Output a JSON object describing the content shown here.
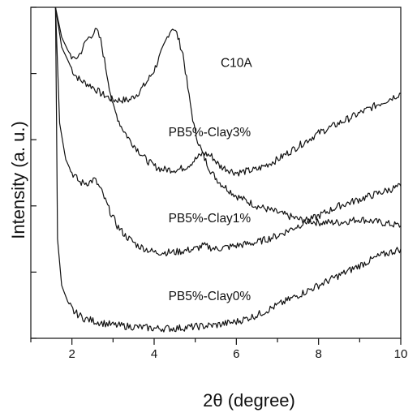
{
  "chart_data": {
    "type": "line",
    "title": "",
    "xlabel": "2θ (degree)",
    "ylabel": "Intensity (a. u.)",
    "xlim": [
      1,
      10
    ],
    "ylim": [
      0,
      100
    ],
    "x_ticks": [
      2,
      4,
      6,
      8,
      10
    ],
    "x_tick_labels": [
      "2",
      "4",
      "6",
      "8",
      "10"
    ],
    "y_tick_labels_shown": false,
    "grid": false,
    "legend": "none (curves labeled inline)",
    "series": [
      {
        "name": "C10A",
        "label": "C10A",
        "x": [
          1.6,
          1.75,
          1.9,
          2.05,
          2.2,
          2.35,
          2.5,
          2.6,
          2.7,
          2.85,
          3.0,
          3.2,
          3.4,
          3.6,
          3.8,
          4.0,
          4.2,
          4.35,
          4.45,
          4.55,
          4.7,
          4.85,
          5.0,
          5.2,
          5.4,
          5.6,
          5.8,
          6.0,
          6.5,
          7.0,
          7.5,
          8.0,
          8.5,
          9.0,
          9.5,
          10.0
        ],
        "y": [
          100,
          88,
          84,
          80,
          78,
          77,
          76,
          75,
          74,
          73,
          72,
          72,
          72,
          74,
          77,
          81,
          87,
          92,
          94,
          92,
          86,
          73,
          62,
          55,
          50,
          47,
          45,
          43,
          40,
          38,
          36,
          35,
          35,
          36,
          35,
          34
        ]
      },
      {
        "name": "PB5%-Clay3%",
        "label": "PB5%-Clay3%",
        "x": [
          1.6,
          1.75,
          1.9,
          2.05,
          2.2,
          2.35,
          2.5,
          2.6,
          2.7,
          2.85,
          3.0,
          3.2,
          3.4,
          3.6,
          3.8,
          4.0,
          4.2,
          4.4,
          4.6,
          4.8,
          5.0,
          5.2,
          5.4,
          5.6,
          5.8,
          6.0,
          6.5,
          7.0,
          7.5,
          8.0,
          8.5,
          9.0,
          9.5,
          10.0
        ],
        "y": [
          100,
          91,
          87,
          84,
          86,
          90,
          92,
          93,
          90,
          80,
          70,
          64,
          60,
          57,
          54,
          52,
          51,
          51,
          51,
          52,
          54,
          56,
          55,
          52,
          51,
          50,
          51,
          54,
          58,
          62,
          65,
          68,
          71,
          74
        ]
      },
      {
        "name": "PB5%-Clay1%",
        "label": "PB5%-Clay1%",
        "x": [
          1.6,
          1.7,
          1.85,
          2.0,
          2.2,
          2.4,
          2.55,
          2.7,
          2.9,
          3.1,
          3.3,
          3.6,
          4.0,
          4.5,
          5.0,
          5.2,
          5.5,
          6.0,
          6.5,
          7.0,
          7.5,
          8.0,
          8.5,
          9.0,
          9.5,
          10.0
        ],
        "y": [
          100,
          65,
          54,
          50,
          47,
          47,
          48,
          45,
          39,
          34,
          31,
          28,
          26,
          26,
          27,
          28,
          27,
          28,
          29,
          31,
          34,
          37,
          40,
          42,
          44,
          46
        ]
      },
      {
        "name": "PB5%-Clay0%",
        "label": "PB5%-Clay0%",
        "x": [
          1.6,
          1.65,
          1.75,
          1.9,
          2.05,
          2.3,
          2.6,
          3.0,
          3.5,
          4.0,
          4.5,
          5.0,
          5.5,
          6.0,
          6.5,
          7.0,
          7.5,
          8.0,
          8.5,
          9.0,
          9.5,
          10.0
        ],
        "y": [
          100,
          30,
          16,
          11,
          8,
          6,
          5,
          4,
          3.5,
          3,
          3,
          3.5,
          4,
          5,
          7,
          10,
          13,
          16,
          19,
          22,
          25,
          27
        ]
      }
    ]
  }
}
